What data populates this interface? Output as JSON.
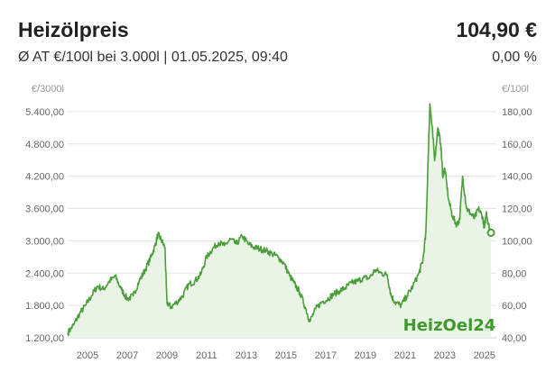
{
  "header": {
    "title": "Heizölpreis",
    "price": "104,90 €",
    "subtitle": "Ø AT €/100l bei 3.000l | 01.05.2025, 09:40",
    "change": "0,00 %"
  },
  "colors": {
    "line": "#4a9e3a",
    "fill": "#eaf4e6",
    "grid": "#e3e3e3",
    "watermark": "#3d9a2b"
  },
  "chart_data": {
    "type": "area",
    "left_axis": {
      "unit": "€/3000l",
      "ylim": [
        1200,
        5700
      ],
      "ticks": [
        1200,
        1800,
        2400,
        3000,
        3600,
        4200,
        4800,
        5400
      ],
      "tick_labels": [
        "1.200,00",
        "1.800,00",
        "2.400,00",
        "3.000,00",
        "3.600,00",
        "4.200,00",
        "4.800,00",
        "5.400,00"
      ]
    },
    "right_axis": {
      "unit": "€/100l",
      "ylim": [
        40,
        190
      ],
      "ticks": [
        40,
        60,
        80,
        100,
        120,
        140,
        160,
        180
      ],
      "tick_labels": [
        "40,00",
        "60,00",
        "80,00",
        "100,00",
        "120,00",
        "140,00",
        "160,00",
        "180,00"
      ]
    },
    "x_ticks": [
      2005,
      2007,
      2009,
      2011,
      2013,
      2015,
      2017,
      2019,
      2021,
      2023,
      2025
    ],
    "xlim": [
      2004.0,
      2025.6
    ],
    "grid": true,
    "watermark": "HeizOel24",
    "last_point_marker": true,
    "series": [
      {
        "x": [
          2004.0,
          2004.3,
          2004.6,
          2004.9,
          2005.2,
          2005.5,
          2005.8,
          2006.1,
          2006.4,
          2006.7,
          2007.0,
          2007.3,
          2007.6,
          2007.9,
          2008.2,
          2008.4,
          2008.55,
          2008.7,
          2008.9,
          2009.0,
          2009.2,
          2009.5,
          2009.8,
          2010.1,
          2010.4,
          2010.7,
          2011.0,
          2011.3,
          2011.6,
          2011.9,
          2012.2,
          2012.5,
          2012.8,
          2013.1,
          2013.4,
          2013.7,
          2014.0,
          2014.3,
          2014.6,
          2014.9,
          2015.2,
          2015.4,
          2015.7,
          2016.0,
          2016.2,
          2016.5,
          2016.8,
          2017.1,
          2017.4,
          2017.7,
          2018.0,
          2018.3,
          2018.6,
          2018.9,
          2019.2,
          2019.5,
          2019.8,
          2020.1,
          2020.3,
          2020.5,
          2020.8,
          2021.1,
          2021.4,
          2021.7,
          2021.9,
          2022.05,
          2022.15,
          2022.25,
          2022.4,
          2022.5,
          2022.65,
          2022.8,
          2022.9,
          2023.0,
          2023.2,
          2023.4,
          2023.6,
          2023.75,
          2023.9,
          2024.1,
          2024.3,
          2024.5,
          2024.7,
          2024.9,
          2025.0,
          2025.1,
          2025.2,
          2025.33
        ],
        "values": [
          43,
          48,
          55,
          60,
          66,
          72,
          70,
          75,
          78,
          70,
          64,
          66,
          75,
          82,
          90,
          97,
          104,
          101,
          96,
          62,
          59,
          62,
          66,
          73,
          75,
          79,
          90,
          95,
          99,
          97,
          101,
          98,
          103,
          98,
          96,
          95,
          94,
          92,
          90,
          86,
          78,
          74,
          68,
          58,
          50,
          58,
          62,
          64,
          67,
          69,
          71,
          74,
          75,
          77,
          77,
          82,
          80,
          79,
          66,
          62,
          60,
          66,
          72,
          80,
          88,
          105,
          145,
          185,
          165,
          150,
          170,
          160,
          140,
          145,
          125,
          115,
          110,
          113,
          140,
          120,
          117,
          114,
          120,
          115,
          108,
          118,
          110,
          105
        ]
      }
    ]
  }
}
